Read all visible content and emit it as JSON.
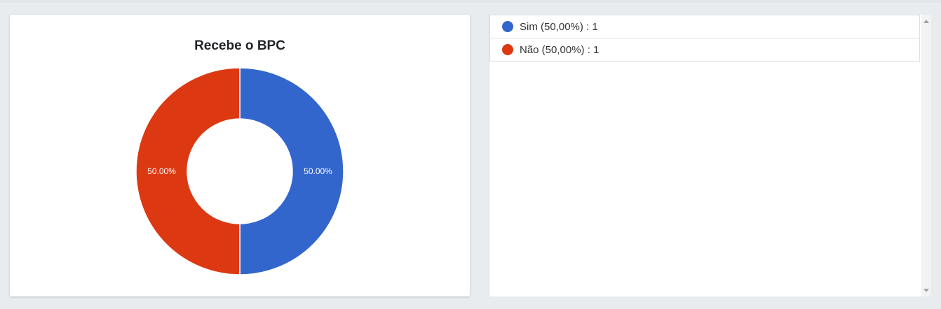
{
  "chart_data": {
    "type": "pie",
    "title": "Recebe o BPC",
    "categories": [
      "Sim",
      "Não"
    ],
    "values": [
      1,
      1
    ],
    "percent_labels": [
      "50.00%",
      "50.00%"
    ],
    "colors": [
      "#3366cc",
      "#dc3912"
    ]
  },
  "legend": {
    "items": [
      {
        "label": "Sim (50,00%) : 1",
        "color": "#3366cc"
      },
      {
        "label": "Não (50,00%) : 1",
        "color": "#dc3912"
      }
    ]
  },
  "scrollbar": {
    "up_icon": "triangle-up",
    "down_icon": "triangle-down"
  }
}
